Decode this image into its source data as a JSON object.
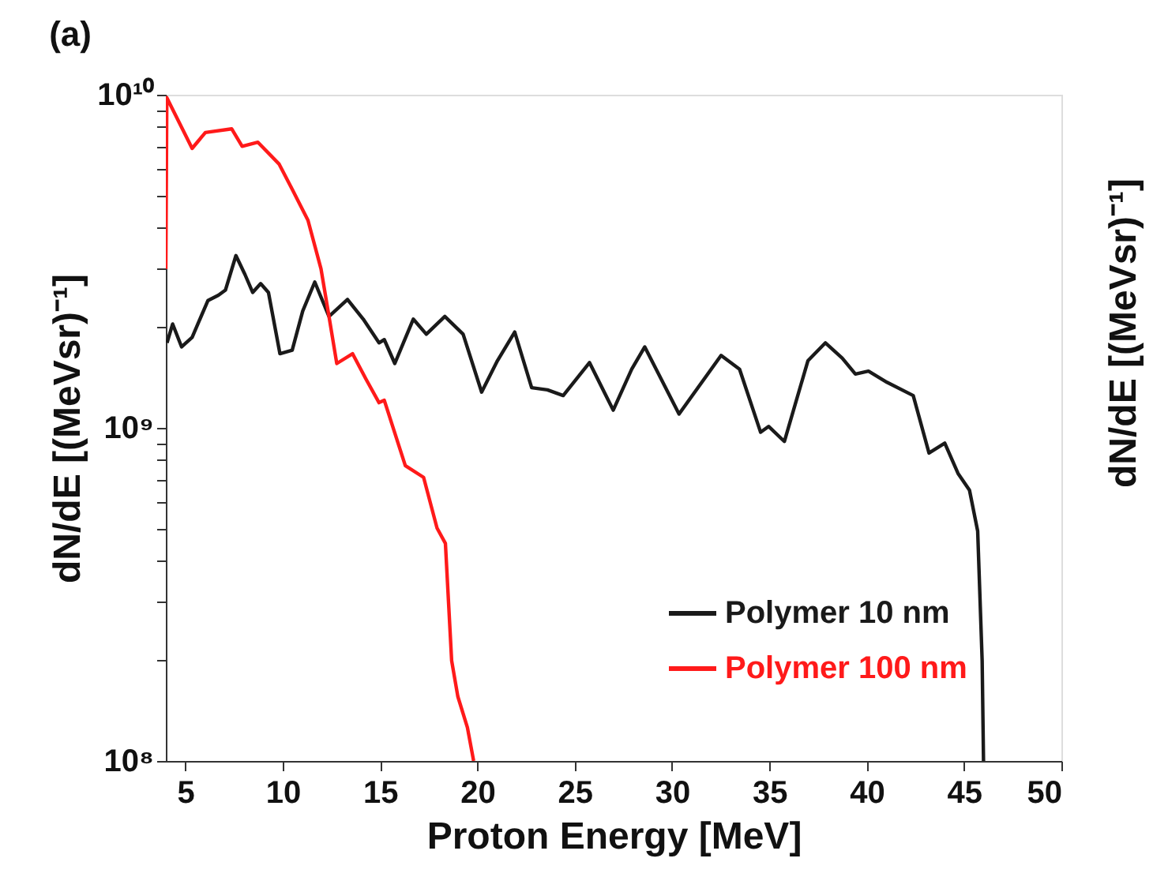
{
  "chart_data": {
    "type": "line",
    "title": "(a)",
    "xlabel": "Proton Energy [MeV]",
    "ylabel": "dN/dE [(MeVsr)⁻¹]",
    "y2label": "dN/dE [(MeVsr)⁻¹]",
    "log": "y",
    "xlim": [
      4,
      50
    ],
    "ylim": [
      100000000.0,
      10000000000.0
    ],
    "xticks": [
      5,
      10,
      15,
      20,
      25,
      30,
      35,
      40,
      45,
      50
    ],
    "yticks": [
      {
        "value": 100000000.0,
        "label": "10⁸"
      },
      {
        "value": 200000000.0,
        "label": null
      },
      {
        "value": 300000000.0,
        "label": null
      },
      {
        "value": 400000000.0,
        "label": null
      },
      {
        "value": 500000000.0,
        "label": null
      },
      {
        "value": 600000000.0,
        "label": null
      },
      {
        "value": 700000000.0,
        "label": null
      },
      {
        "value": 800000000.0,
        "label": null
      },
      {
        "value": 900000000.0,
        "label": null
      },
      {
        "value": 1000000000.0,
        "label": "10⁹"
      },
      {
        "value": 2000000000.0,
        "label": null
      },
      {
        "value": 3000000000.0,
        "label": null
      },
      {
        "value": 4000000000.0,
        "label": null
      },
      {
        "value": 5000000000.0,
        "label": null
      },
      {
        "value": 6000000000.0,
        "label": null
      },
      {
        "value": 7000000000.0,
        "label": null
      },
      {
        "value": 8000000000.0,
        "label": null
      },
      {
        "value": 9000000000.0,
        "label": null
      },
      {
        "value": 10000000000.0,
        "label": "10¹⁰"
      }
    ],
    "grid": false,
    "legend": "bottom right",
    "line_style": "solid",
    "marker": "none",
    "series": [
      {
        "name": "Polymer 10 nm",
        "color": "#1a1a1a",
        "x": [
          4.06,
          4.35,
          4.81,
          5.35,
          6.16,
          6.7,
          7.06,
          7.6,
          8.06,
          8.46,
          8.87,
          9.27,
          9.86,
          10.49,
          11.03,
          11.65,
          12.38,
          13.33,
          14.14,
          14.95,
          15.22,
          15.76,
          16.71,
          17.38,
          18.33,
          19.27,
          20.22,
          21.03,
          21.92,
          22.79,
          23.6,
          24.41,
          25.76,
          26.98,
          27.93,
          28.6,
          30.36,
          32.52,
          33.47,
          34.55,
          34.96,
          35.77,
          36.98,
          37.88,
          38.74,
          39.42,
          40.09,
          41.04,
          42.39,
          43.2,
          44.01,
          44.69,
          45.28,
          45.7,
          45.93,
          46.0
        ],
        "values": [
          1800000000.0,
          2050000000.0,
          1750000000.0,
          1870000000.0,
          2410000000.0,
          2500000000.0,
          2590000000.0,
          3290000000.0,
          2890000000.0,
          2550000000.0,
          2710000000.0,
          2550000000.0,
          1670000000.0,
          1710000000.0,
          2240000000.0,
          2740000000.0,
          2160000000.0,
          2430000000.0,
          2120000000.0,
          1800000000.0,
          1840000000.0,
          1560000000.0,
          2120000000.0,
          1910000000.0,
          2160000000.0,
          1910000000.0,
          1280000000.0,
          1590000000.0,
          1940000000.0,
          1320000000.0,
          1300000000.0,
          1250000000.0,
          1570000000.0,
          1130000000.0,
          1500000000.0,
          1750000000.0,
          1100000000.0,
          1650000000.0,
          1500000000.0,
          970000000.0,
          1010000000.0,
          910000000.0,
          1590000000.0,
          1800000000.0,
          1620000000.0,
          1450000000.0,
          1480000000.0,
          1370000000.0,
          1250000000.0,
          840000000.0,
          900000000.0,
          730000000.0,
          650000000.0,
          490000000.0,
          200000000.0,
          100000000.0
        ]
      },
      {
        "name": "Polymer 100 nm",
        "color": "#ff1a1a",
        "x": [
          4.0,
          4.05,
          5.35,
          6.03,
          7.38,
          7.92,
          8.73,
          9.81,
          10.49,
          11.3,
          11.97,
          12.38,
          12.78,
          13.59,
          14.28,
          14.95,
          15.22,
          16.3,
          17.24,
          17.93,
          18.36,
          18.68,
          19.0,
          19.49,
          19.81
        ],
        "values": [
          3000000000.0,
          9800000000.0,
          6900000000.0,
          7700000000.0,
          7900000000.0,
          7000000000.0,
          7200000000.0,
          6200000000.0,
          5200000000.0,
          4200000000.0,
          3000000000.0,
          2160000000.0,
          1560000000.0,
          1670000000.0,
          1400000000.0,
          1190000000.0,
          1210000000.0,
          770000000.0,
          710000000.0,
          500000000.0,
          450000000.0,
          200000000.0,
          156000000.0,
          126000000.0,
          100000000.0
        ]
      }
    ]
  }
}
